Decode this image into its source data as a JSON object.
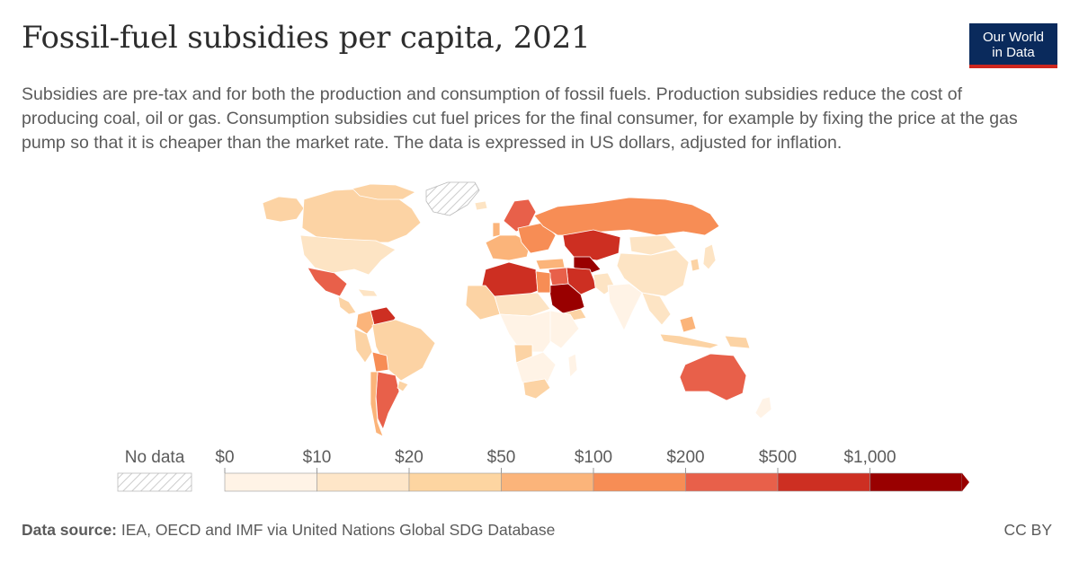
{
  "header": {
    "title": "Fossil-fuel subsidies per capita, 2021",
    "subtitle": "Subsidies are pre-tax and for both the production and consumption of fossil fuels. Production subsidies reduce the cost of producing coal, oil or gas. Consumption subsidies cut fuel prices for the final consumer, for example by fixing the price at the gas pump so that it is cheaper than the market rate. The data is expressed in US dollars, adjusted for inflation.",
    "logo_line1": "Our World",
    "logo_line2": "in Data"
  },
  "legend": {
    "no_data_label": "No data",
    "bins": [
      "$0",
      "$10",
      "$20",
      "$50",
      "$100",
      "$200",
      "$500",
      "$1,000"
    ],
    "colors": [
      "#fff3e6",
      "#fee6c8",
      "#fdd5a1",
      "#fbb47a",
      "#f78d55",
      "#e8604a",
      "#cd2f22",
      "#990000"
    ],
    "no_data_color": "#dddddd"
  },
  "footer": {
    "source_label": "Data source:",
    "source_text": "IEA, OECD and IMF via United Nations Global SDG Database",
    "license": "CC BY"
  }
}
